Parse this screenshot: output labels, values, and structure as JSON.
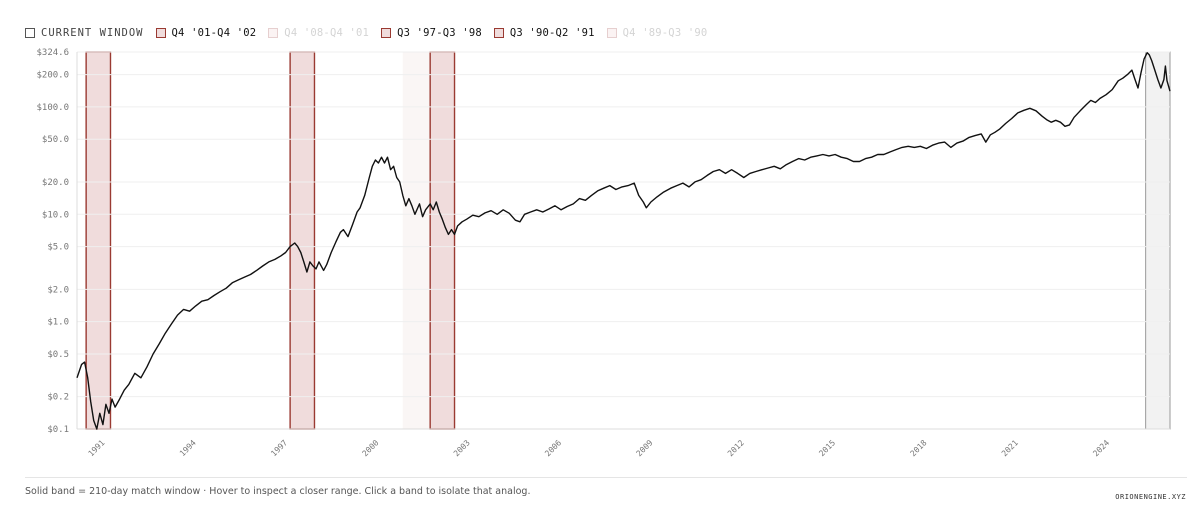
{
  "legend": {
    "current": "CURRENT WINDOW",
    "items": [
      {
        "label": "Q4 '01-Q4 '02",
        "state": "active"
      },
      {
        "label": "Q4 '08-Q4 '01",
        "state": "faded"
      },
      {
        "label": "Q3 '97-Q3 '98",
        "state": "active"
      },
      {
        "label": "Q3 '90-Q2 '91",
        "state": "active"
      },
      {
        "label": "Q4 '89-Q3 '90",
        "state": "faded"
      }
    ]
  },
  "footnote": "Solid band = 210-day match window · Hover to inspect a closer range. Click a band to isolate that analog.",
  "brand": "ORIONENGINE.XYZ",
  "colors": {
    "line": "#111111",
    "analog_fill": "#f0dcdc",
    "analog_stroke": "#9a3a32",
    "faded_fill": "#faf6f5",
    "current_fill": "#f2f2f2",
    "current_stroke": "#9a9a9a",
    "grid": "#efefef"
  },
  "chart_data": {
    "type": "line",
    "y_scale": "log",
    "ylim": [
      0.1,
      324.6
    ],
    "xlim": [
      1990.3,
      2026.2
    ],
    "y_ticks": [
      {
        "value": 0.1,
        "label": "$0.1"
      },
      {
        "value": 0.2,
        "label": "$0.2"
      },
      {
        "value": 0.5,
        "label": "$0.5"
      },
      {
        "value": 1.0,
        "label": "$1.0"
      },
      {
        "value": 2.0,
        "label": "$2.0"
      },
      {
        "value": 5.0,
        "label": "$5.0"
      },
      {
        "value": 10.0,
        "label": "$10.0"
      },
      {
        "value": 20.0,
        "label": "$20.0"
      },
      {
        "value": 50.0,
        "label": "$50.0"
      },
      {
        "value": 100.0,
        "label": "$100.0"
      },
      {
        "value": 200.0,
        "label": "$200.0"
      },
      {
        "value": 324.6,
        "label": "$324.6"
      }
    ],
    "x_ticks": [
      {
        "value": 1991,
        "label": "1991"
      },
      {
        "value": 1994,
        "label": "1994"
      },
      {
        "value": 1997,
        "label": "1997"
      },
      {
        "value": 2000,
        "label": "2000"
      },
      {
        "value": 2003,
        "label": "2003"
      },
      {
        "value": 2006,
        "label": "2006"
      },
      {
        "value": 2009,
        "label": "2009"
      },
      {
        "value": 2012,
        "label": "2012"
      },
      {
        "value": 2015,
        "label": "2015"
      },
      {
        "value": 2018,
        "label": "2018"
      },
      {
        "value": 2021,
        "label": "2021"
      },
      {
        "value": 2024,
        "label": "2024"
      }
    ],
    "bands": [
      {
        "start": 1990.6,
        "end": 1991.4,
        "style": "analog"
      },
      {
        "start": 1997.3,
        "end": 1998.1,
        "style": "analog"
      },
      {
        "start": 2001.0,
        "end": 2001.9,
        "style": "faded"
      },
      {
        "start": 2001.9,
        "end": 2002.7,
        "style": "analog"
      },
      {
        "start": 2025.4,
        "end": 2026.2,
        "style": "current"
      }
    ],
    "series": [
      {
        "points": [
          [
            1990.3,
            0.3
          ],
          [
            1990.45,
            0.4
          ],
          [
            1990.55,
            0.42
          ],
          [
            1990.65,
            0.3
          ],
          [
            1990.75,
            0.18
          ],
          [
            1990.85,
            0.12
          ],
          [
            1990.95,
            0.1
          ],
          [
            1991.05,
            0.14
          ],
          [
            1991.15,
            0.11
          ],
          [
            1991.25,
            0.17
          ],
          [
            1991.35,
            0.14
          ],
          [
            1991.45,
            0.19
          ],
          [
            1991.55,
            0.16
          ],
          [
            1991.7,
            0.19
          ],
          [
            1991.85,
            0.23
          ],
          [
            1992.0,
            0.26
          ],
          [
            1992.2,
            0.33
          ],
          [
            1992.4,
            0.3
          ],
          [
            1992.6,
            0.38
          ],
          [
            1992.8,
            0.5
          ],
          [
            1993.0,
            0.62
          ],
          [
            1993.2,
            0.78
          ],
          [
            1993.4,
            0.95
          ],
          [
            1993.6,
            1.15
          ],
          [
            1993.8,
            1.3
          ],
          [
            1994.0,
            1.25
          ],
          [
            1994.2,
            1.4
          ],
          [
            1994.4,
            1.55
          ],
          [
            1994.6,
            1.6
          ],
          [
            1994.8,
            1.75
          ],
          [
            1995.0,
            1.9
          ],
          [
            1995.2,
            2.05
          ],
          [
            1995.4,
            2.3
          ],
          [
            1995.6,
            2.45
          ],
          [
            1995.8,
            2.6
          ],
          [
            1996.0,
            2.75
          ],
          [
            1996.2,
            3.0
          ],
          [
            1996.4,
            3.3
          ],
          [
            1996.6,
            3.6
          ],
          [
            1996.8,
            3.8
          ],
          [
            1997.0,
            4.1
          ],
          [
            1997.15,
            4.4
          ],
          [
            1997.3,
            5.0
          ],
          [
            1997.45,
            5.4
          ],
          [
            1997.55,
            5.0
          ],
          [
            1997.65,
            4.4
          ],
          [
            1997.75,
            3.6
          ],
          [
            1997.85,
            2.9
          ],
          [
            1997.95,
            3.6
          ],
          [
            1998.05,
            3.3
          ],
          [
            1998.15,
            3.1
          ],
          [
            1998.25,
            3.6
          ],
          [
            1998.4,
            3.0
          ],
          [
            1998.5,
            3.4
          ],
          [
            1998.65,
            4.4
          ],
          [
            1998.8,
            5.5
          ],
          [
            1998.95,
            6.8
          ],
          [
            1999.05,
            7.2
          ],
          [
            1999.2,
            6.2
          ],
          [
            1999.35,
            8.0
          ],
          [
            1999.5,
            10.5
          ],
          [
            1999.6,
            11.5
          ],
          [
            1999.75,
            15.0
          ],
          [
            1999.9,
            22.0
          ],
          [
            2000.0,
            28.0
          ],
          [
            2000.1,
            32.0
          ],
          [
            2000.2,
            30.0
          ],
          [
            2000.3,
            34.0
          ],
          [
            2000.4,
            30.0
          ],
          [
            2000.5,
            34.0
          ],
          [
            2000.6,
            26.0
          ],
          [
            2000.7,
            28.0
          ],
          [
            2000.8,
            22.0
          ],
          [
            2000.9,
            20.0
          ],
          [
            2001.0,
            15.0
          ],
          [
            2001.1,
            12.0
          ],
          [
            2001.2,
            14.0
          ],
          [
            2001.3,
            12.0
          ],
          [
            2001.4,
            10.0
          ],
          [
            2001.55,
            12.5
          ],
          [
            2001.65,
            9.5
          ],
          [
            2001.75,
            11.0
          ],
          [
            2001.9,
            12.5
          ],
          [
            2002.0,
            11.0
          ],
          [
            2002.1,
            13.0
          ],
          [
            2002.2,
            10.5
          ],
          [
            2002.3,
            9.0
          ],
          [
            2002.4,
            7.5
          ],
          [
            2002.5,
            6.5
          ],
          [
            2002.6,
            7.2
          ],
          [
            2002.7,
            6.5
          ],
          [
            2002.8,
            7.8
          ],
          [
            2002.95,
            8.5
          ],
          [
            2003.1,
            9.0
          ],
          [
            2003.3,
            9.8
          ],
          [
            2003.5,
            9.5
          ],
          [
            2003.7,
            10.3
          ],
          [
            2003.9,
            10.8
          ],
          [
            2004.1,
            10.0
          ],
          [
            2004.3,
            11.0
          ],
          [
            2004.5,
            10.2
          ],
          [
            2004.7,
            8.8
          ],
          [
            2004.85,
            8.5
          ],
          [
            2005.0,
            10.0
          ],
          [
            2005.2,
            10.5
          ],
          [
            2005.4,
            11.0
          ],
          [
            2005.6,
            10.5
          ],
          [
            2005.8,
            11.2
          ],
          [
            2006.0,
            12.0
          ],
          [
            2006.2,
            11.0
          ],
          [
            2006.4,
            11.8
          ],
          [
            2006.6,
            12.5
          ],
          [
            2006.8,
            14.0
          ],
          [
            2007.0,
            13.5
          ],
          [
            2007.2,
            15.0
          ],
          [
            2007.4,
            16.5
          ],
          [
            2007.6,
            17.5
          ],
          [
            2007.8,
            18.5
          ],
          [
            2008.0,
            17.0
          ],
          [
            2008.2,
            18.0
          ],
          [
            2008.4,
            18.5
          ],
          [
            2008.6,
            19.5
          ],
          [
            2008.75,
            15.0
          ],
          [
            2008.9,
            13.0
          ],
          [
            2009.0,
            11.5
          ],
          [
            2009.15,
            13.0
          ],
          [
            2009.35,
            14.5
          ],
          [
            2009.55,
            16.0
          ],
          [
            2009.8,
            17.5
          ],
          [
            2010.0,
            18.5
          ],
          [
            2010.2,
            19.5
          ],
          [
            2010.4,
            18.0
          ],
          [
            2010.6,
            20.0
          ],
          [
            2010.8,
            21.0
          ],
          [
            2011.0,
            23.0
          ],
          [
            2011.2,
            25.0
          ],
          [
            2011.4,
            26.0
          ],
          [
            2011.6,
            24.0
          ],
          [
            2011.8,
            26.0
          ],
          [
            2012.0,
            24.0
          ],
          [
            2012.2,
            22.0
          ],
          [
            2012.4,
            24.0
          ],
          [
            2012.6,
            25.0
          ],
          [
            2012.8,
            26.0
          ],
          [
            2013.0,
            27.0
          ],
          [
            2013.2,
            28.0
          ],
          [
            2013.4,
            26.5
          ],
          [
            2013.6,
            29.0
          ],
          [
            2013.8,
            31.0
          ],
          [
            2014.0,
            33.0
          ],
          [
            2014.2,
            32.0
          ],
          [
            2014.4,
            34.0
          ],
          [
            2014.6,
            35.0
          ],
          [
            2014.8,
            36.0
          ],
          [
            2015.0,
            35.0
          ],
          [
            2015.2,
            36.0
          ],
          [
            2015.4,
            34.0
          ],
          [
            2015.6,
            33.0
          ],
          [
            2015.8,
            31.0
          ],
          [
            2016.0,
            31.0
          ],
          [
            2016.2,
            33.0
          ],
          [
            2016.4,
            34.0
          ],
          [
            2016.6,
            36.0
          ],
          [
            2016.8,
            36.0
          ],
          [
            2017.0,
            38.0
          ],
          [
            2017.2,
            40.0
          ],
          [
            2017.4,
            42.0
          ],
          [
            2017.6,
            43.0
          ],
          [
            2017.8,
            42.0
          ],
          [
            2018.0,
            43.0
          ],
          [
            2018.2,
            41.0
          ],
          [
            2018.4,
            44.0
          ],
          [
            2018.6,
            46.0
          ],
          [
            2018.8,
            47.0
          ],
          [
            2019.0,
            42.0
          ],
          [
            2019.2,
            46.0
          ],
          [
            2019.4,
            48.0
          ],
          [
            2019.6,
            52.0
          ],
          [
            2019.8,
            54.0
          ],
          [
            2020.0,
            56.0
          ],
          [
            2020.15,
            47.0
          ],
          [
            2020.3,
            55.0
          ],
          [
            2020.45,
            58.0
          ],
          [
            2020.6,
            62.0
          ],
          [
            2020.8,
            70.0
          ],
          [
            2021.0,
            78.0
          ],
          [
            2021.2,
            88.0
          ],
          [
            2021.4,
            93.0
          ],
          [
            2021.6,
            97.0
          ],
          [
            2021.8,
            92.0
          ],
          [
            2022.0,
            82.0
          ],
          [
            2022.15,
            76.0
          ],
          [
            2022.3,
            72.0
          ],
          [
            2022.45,
            75.0
          ],
          [
            2022.6,
            72.0
          ],
          [
            2022.75,
            66.0
          ],
          [
            2022.9,
            68.0
          ],
          [
            2023.05,
            80.0
          ],
          [
            2023.25,
            92.0
          ],
          [
            2023.45,
            105.0
          ],
          [
            2023.6,
            115.0
          ],
          [
            2023.75,
            110.0
          ],
          [
            2023.9,
            120.0
          ],
          [
            2024.1,
            130.0
          ],
          [
            2024.3,
            145.0
          ],
          [
            2024.5,
            175.0
          ],
          [
            2024.65,
            185.0
          ],
          [
            2024.8,
            200.0
          ],
          [
            2024.95,
            220.0
          ],
          [
            2025.05,
            180.0
          ],
          [
            2025.15,
            150.0
          ],
          [
            2025.25,
            210.0
          ],
          [
            2025.35,
            280.0
          ],
          [
            2025.45,
            320.0
          ],
          [
            2025.52,
            305.0
          ],
          [
            2025.6,
            270.0
          ],
          [
            2025.7,
            220.0
          ],
          [
            2025.8,
            180.0
          ],
          [
            2025.9,
            150.0
          ],
          [
            2026.0,
            180.0
          ],
          [
            2026.05,
            240.0
          ],
          [
            2026.1,
            175.0
          ],
          [
            2026.2,
            140.0
          ]
        ]
      }
    ]
  }
}
